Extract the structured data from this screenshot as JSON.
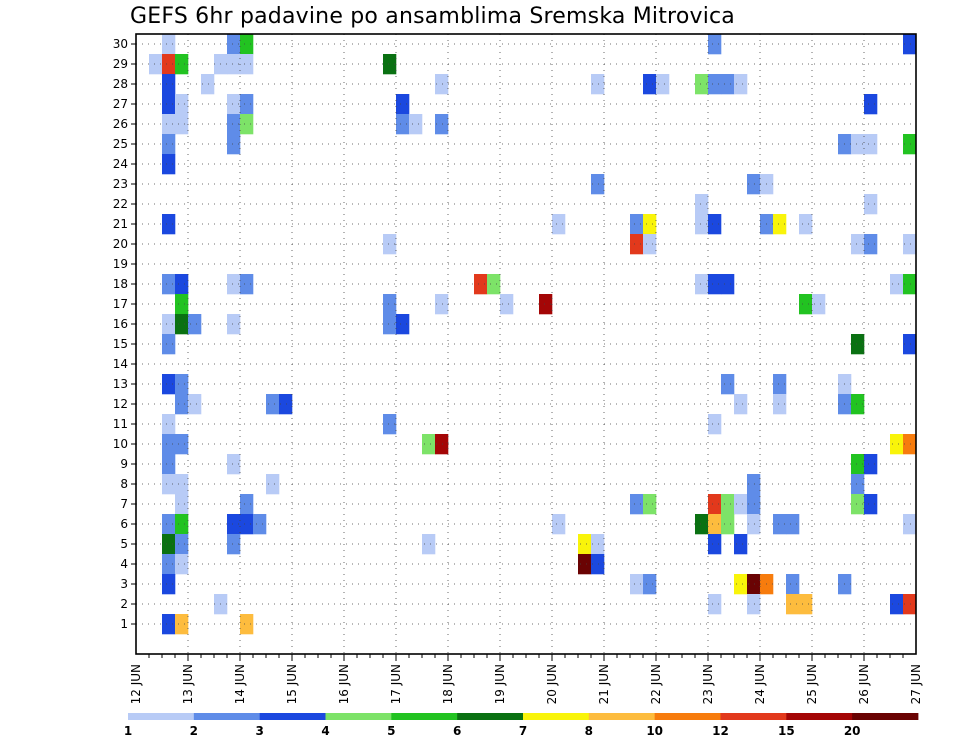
{
  "chart_data": {
    "type": "heatmap",
    "title": "GEFS 6hr padavine po ansamblima Sremska Mitrovica",
    "y_ticks": [
      "1",
      "2",
      "3",
      "4",
      "5",
      "6",
      "7",
      "8",
      "9",
      "10",
      "11",
      "12",
      "13",
      "14",
      "15",
      "16",
      "17",
      "18",
      "19",
      "20",
      "21",
      "22",
      "23",
      "24",
      "25",
      "26",
      "27",
      "28",
      "29",
      "30"
    ],
    "x_ticks": [
      "12 JUN",
      "13 JUN",
      "14 JUN",
      "15 JUN",
      "16 JUN",
      "17 JUN",
      "18 JUN",
      "19 JUN",
      "20 JUN",
      "21 JUN",
      "22 JUN",
      "23 JUN",
      "24 JUN",
      "25 JUN",
      "26 JUN",
      "27 JUN"
    ],
    "x_range": [
      "12 JUN 00Z",
      "27 JUN 00Z"
    ],
    "y_range": [
      0,
      30
    ],
    "grid": "dotted",
    "colorbar": {
      "labels": [
        "1",
        "2",
        "3",
        "4",
        "5",
        "6",
        "7",
        "8",
        "10",
        "12",
        "15",
        "20"
      ],
      "colors": [
        "#b8cbf6",
        "#5f8ce8",
        "#1b48df",
        "#7de368",
        "#22c321",
        "#0a7112",
        "#f9f40a",
        "#fdbc3e",
        "#f77c0d",
        "#e2391c",
        "#a40606",
        "#6a0303"
      ]
    },
    "cell_value_legend": "level index 1-12 = color bin of colorbar (1 = 1-2 mm ... 12 = >=20 mm)",
    "cells": [
      {
        "m": 30,
        "t": "12 JUN 12Z",
        "v": 1
      },
      {
        "m": 30,
        "t": "13 JUN 18Z",
        "v": 2
      },
      {
        "m": 30,
        "t": "14 JUN 00Z",
        "v": 5
      },
      {
        "m": 30,
        "t": "23 JUN 00Z",
        "v": 2
      },
      {
        "m": 30,
        "t": "26 JUN 18Z",
        "v": 3
      },
      {
        "m": 29,
        "t": "12 JUN 06Z",
        "v": 1
      },
      {
        "m": 29,
        "t": "12 JUN 12Z",
        "v": 10
      },
      {
        "m": 29,
        "t": "12 JUN 18Z",
        "v": 5
      },
      {
        "m": 29,
        "t": "13 JUN 12Z",
        "v": 1
      },
      {
        "m": 29,
        "t": "13 JUN 18Z",
        "v": 1
      },
      {
        "m": 29,
        "t": "14 JUN 00Z",
        "v": 1
      },
      {
        "m": 29,
        "t": "16 JUN 18Z",
        "v": 6
      },
      {
        "m": 28,
        "t": "12 JUN 12Z",
        "v": 3
      },
      {
        "m": 28,
        "t": "13 JUN 06Z",
        "v": 1
      },
      {
        "m": 28,
        "t": "17 JUN 18Z",
        "v": 1
      },
      {
        "m": 28,
        "t": "20 JUN 18Z",
        "v": 1
      },
      {
        "m": 28,
        "t": "21 JUN 18Z",
        "v": 3
      },
      {
        "m": 28,
        "t": "22 JUN 00Z",
        "v": 1
      },
      {
        "m": 28,
        "t": "22 JUN 18Z",
        "v": 4
      },
      {
        "m": 28,
        "t": "23 JUN 00Z",
        "v": 2
      },
      {
        "m": 28,
        "t": "23 JUN 06Z",
        "v": 2
      },
      {
        "m": 28,
        "t": "23 JUN 12Z",
        "v": 1
      },
      {
        "m": 27,
        "t": "12 JUN 12Z",
        "v": 3
      },
      {
        "m": 27,
        "t": "12 JUN 18Z",
        "v": 1
      },
      {
        "m": 27,
        "t": "13 JUN 18Z",
        "v": 1
      },
      {
        "m": 27,
        "t": "14 JUN 00Z",
        "v": 2
      },
      {
        "m": 27,
        "t": "17 JUN 00Z",
        "v": 3
      },
      {
        "m": 27,
        "t": "26 JUN 00Z",
        "v": 3
      },
      {
        "m": 26,
        "t": "12 JUN 12Z",
        "v": 1
      },
      {
        "m": 26,
        "t": "12 JUN 18Z",
        "v": 1
      },
      {
        "m": 26,
        "t": "13 JUN 18Z",
        "v": 2
      },
      {
        "m": 26,
        "t": "14 JUN 00Z",
        "v": 4
      },
      {
        "m": 26,
        "t": "17 JUN 00Z",
        "v": 2
      },
      {
        "m": 26,
        "t": "17 JUN 06Z",
        "v": 1
      },
      {
        "m": 26,
        "t": "17 JUN 18Z",
        "v": 2
      },
      {
        "m": 25,
        "t": "12 JUN 12Z",
        "v": 2
      },
      {
        "m": 25,
        "t": "13 JUN 18Z",
        "v": 2
      },
      {
        "m": 25,
        "t": "25 JUN 12Z",
        "v": 2
      },
      {
        "m": 25,
        "t": "25 JUN 18Z",
        "v": 1
      },
      {
        "m": 25,
        "t": "26 JUN 00Z",
        "v": 1
      },
      {
        "m": 25,
        "t": "26 JUN 18Z",
        "v": 5
      },
      {
        "m": 24,
        "t": "12 JUN 12Z",
        "v": 3
      },
      {
        "m": 23,
        "t": "20 JUN 18Z",
        "v": 2
      },
      {
        "m": 23,
        "t": "23 JUN 18Z",
        "v": 2
      },
      {
        "m": 23,
        "t": "24 JUN 00Z",
        "v": 1
      },
      {
        "m": 22,
        "t": "22 JUN 18Z",
        "v": 1
      },
      {
        "m": 22,
        "t": "26 JUN 00Z",
        "v": 1
      },
      {
        "m": 21,
        "t": "12 JUN 12Z",
        "v": 3
      },
      {
        "m": 21,
        "t": "20 JUN 00Z",
        "v": 1
      },
      {
        "m": 21,
        "t": "21 JUN 12Z",
        "v": 2
      },
      {
        "m": 21,
        "t": "21 JUN 18Z",
        "v": 7
      },
      {
        "m": 21,
        "t": "22 JUN 18Z",
        "v": 1
      },
      {
        "m": 21,
        "t": "23 JUN 00Z",
        "v": 3
      },
      {
        "m": 21,
        "t": "24 JUN 00Z",
        "v": 2
      },
      {
        "m": 21,
        "t": "24 JUN 06Z",
        "v": 7
      },
      {
        "m": 21,
        "t": "24 JUN 18Z",
        "v": 1
      },
      {
        "m": 20,
        "t": "16 JUN 18Z",
        "v": 1
      },
      {
        "m": 20,
        "t": "21 JUN 12Z",
        "v": 10
      },
      {
        "m": 20,
        "t": "21 JUN 18Z",
        "v": 1
      },
      {
        "m": 20,
        "t": "25 JUN 18Z",
        "v": 1
      },
      {
        "m": 20,
        "t": "26 JUN 00Z",
        "v": 2
      },
      {
        "m": 20,
        "t": "26 JUN 18Z",
        "v": 1
      },
      {
        "m": 18,
        "t": "12 JUN 12Z",
        "v": 2
      },
      {
        "m": 18,
        "t": "12 JUN 18Z",
        "v": 3
      },
      {
        "m": 18,
        "t": "13 JUN 18Z",
        "v": 1
      },
      {
        "m": 18,
        "t": "14 JUN 00Z",
        "v": 2
      },
      {
        "m": 18,
        "t": "18 JUN 12Z",
        "v": 10
      },
      {
        "m": 18,
        "t": "18 JUN 18Z",
        "v": 4
      },
      {
        "m": 18,
        "t": "22 JUN 18Z",
        "v": 1
      },
      {
        "m": 18,
        "t": "23 JUN 00Z",
        "v": 3
      },
      {
        "m": 18,
        "t": "23 JUN 06Z",
        "v": 3
      },
      {
        "m": 18,
        "t": "26 JUN 12Z",
        "v": 1
      },
      {
        "m": 18,
        "t": "26 JUN 18Z",
        "v": 5
      },
      {
        "m": 17,
        "t": "12 JUN 18Z",
        "v": 5
      },
      {
        "m": 17,
        "t": "16 JUN 18Z",
        "v": 2
      },
      {
        "m": 17,
        "t": "17 JUN 18Z",
        "v": 1
      },
      {
        "m": 17,
        "t": "19 JUN 00Z",
        "v": 1
      },
      {
        "m": 17,
        "t": "19 JUN 18Z",
        "v": 11
      },
      {
        "m": 17,
        "t": "24 JUN 18Z",
        "v": 5
      },
      {
        "m": 17,
        "t": "25 JUN 00Z",
        "v": 1
      },
      {
        "m": 16,
        "t": "12 JUN 12Z",
        "v": 1
      },
      {
        "m": 16,
        "t": "12 JUN 18Z",
        "v": 6
      },
      {
        "m": 16,
        "t": "13 JUN 00Z",
        "v": 2
      },
      {
        "m": 16,
        "t": "13 JUN 18Z",
        "v": 1
      },
      {
        "m": 16,
        "t": "16 JUN 18Z",
        "v": 2
      },
      {
        "m": 16,
        "t": "17 JUN 00Z",
        "v": 3
      },
      {
        "m": 15,
        "t": "12 JUN 12Z",
        "v": 2
      },
      {
        "m": 15,
        "t": "25 JUN 18Z",
        "v": 6
      },
      {
        "m": 15,
        "t": "26 JUN 18Z",
        "v": 3
      },
      {
        "m": 13,
        "t": "12 JUN 12Z",
        "v": 3
      },
      {
        "m": 13,
        "t": "12 JUN 18Z",
        "v": 2
      },
      {
        "m": 13,
        "t": "23 JUN 06Z",
        "v": 2
      },
      {
        "m": 13,
        "t": "24 JUN 06Z",
        "v": 2
      },
      {
        "m": 13,
        "t": "25 JUN 12Z",
        "v": 1
      },
      {
        "m": 12,
        "t": "12 JUN 18Z",
        "v": 2
      },
      {
        "m": 12,
        "t": "13 JUN 00Z",
        "v": 1
      },
      {
        "m": 12,
        "t": "14 JUN 12Z",
        "v": 2
      },
      {
        "m": 12,
        "t": "14 JUN 18Z",
        "v": 3
      },
      {
        "m": 12,
        "t": "23 JUN 12Z",
        "v": 1
      },
      {
        "m": 12,
        "t": "24 JUN 06Z",
        "v": 1
      },
      {
        "m": 12,
        "t": "25 JUN 12Z",
        "v": 2
      },
      {
        "m": 12,
        "t": "25 JUN 18Z",
        "v": 5
      },
      {
        "m": 11,
        "t": "12 JUN 12Z",
        "v": 1
      },
      {
        "m": 11,
        "t": "16 JUN 18Z",
        "v": 2
      },
      {
        "m": 11,
        "t": "23 JUN 00Z",
        "v": 1
      },
      {
        "m": 10,
        "t": "12 JUN 12Z",
        "v": 2
      },
      {
        "m": 10,
        "t": "12 JUN 18Z",
        "v": 2
      },
      {
        "m": 10,
        "t": "17 JUN 12Z",
        "v": 4
      },
      {
        "m": 10,
        "t": "17 JUN 18Z",
        "v": 11
      },
      {
        "m": 10,
        "t": "26 JUN 12Z",
        "v": 7
      },
      {
        "m": 10,
        "t": "26 JUN 18Z",
        "v": 9
      },
      {
        "m": 9,
        "t": "12 JUN 12Z",
        "v": 2
      },
      {
        "m": 9,
        "t": "13 JUN 18Z",
        "v": 1
      },
      {
        "m": 9,
        "t": "25 JUN 18Z",
        "v": 5
      },
      {
        "m": 9,
        "t": "26 JUN 00Z",
        "v": 3
      },
      {
        "m": 8,
        "t": "12 JUN 12Z",
        "v": 1
      },
      {
        "m": 8,
        "t": "12 JUN 18Z",
        "v": 1
      },
      {
        "m": 8,
        "t": "14 JUN 12Z",
        "v": 1
      },
      {
        "m": 8,
        "t": "23 JUN 18Z",
        "v": 2
      },
      {
        "m": 8,
        "t": "25 JUN 18Z",
        "v": 2
      },
      {
        "m": 7,
        "t": "12 JUN 18Z",
        "v": 1
      },
      {
        "m": 7,
        "t": "14 JUN 00Z",
        "v": 2
      },
      {
        "m": 7,
        "t": "21 JUN 12Z",
        "v": 2
      },
      {
        "m": 7,
        "t": "21 JUN 18Z",
        "v": 4
      },
      {
        "m": 7,
        "t": "23 JUN 00Z",
        "v": 10
      },
      {
        "m": 7,
        "t": "23 JUN 06Z",
        "v": 4
      },
      {
        "m": 7,
        "t": "23 JUN 12Z",
        "v": 1
      },
      {
        "m": 7,
        "t": "23 JUN 18Z",
        "v": 2
      },
      {
        "m": 7,
        "t": "25 JUN 18Z",
        "v": 4
      },
      {
        "m": 7,
        "t": "26 JUN 00Z",
        "v": 3
      },
      {
        "m": 6,
        "t": "12 JUN 12Z",
        "v": 2
      },
      {
        "m": 6,
        "t": "12 JUN 18Z",
        "v": 5
      },
      {
        "m": 6,
        "t": "13 JUN 18Z",
        "v": 3
      },
      {
        "m": 6,
        "t": "14 JUN 00Z",
        "v": 3
      },
      {
        "m": 6,
        "t": "14 JUN 06Z",
        "v": 2
      },
      {
        "m": 6,
        "t": "20 JUN 00Z",
        "v": 1
      },
      {
        "m": 6,
        "t": "22 JUN 18Z",
        "v": 6
      },
      {
        "m": 6,
        "t": "23 JUN 00Z",
        "v": 8
      },
      {
        "m": 6,
        "t": "23 JUN 06Z",
        "v": 4
      },
      {
        "m": 6,
        "t": "23 JUN 18Z",
        "v": 1
      },
      {
        "m": 6,
        "t": "24 JUN 06Z",
        "v": 2
      },
      {
        "m": 6,
        "t": "24 JUN 12Z",
        "v": 2
      },
      {
        "m": 6,
        "t": "26 JUN 18Z",
        "v": 1
      },
      {
        "m": 5,
        "t": "12 JUN 12Z",
        "v": 6
      },
      {
        "m": 5,
        "t": "12 JUN 18Z",
        "v": 2
      },
      {
        "m": 5,
        "t": "13 JUN 18Z",
        "v": 2
      },
      {
        "m": 5,
        "t": "17 JUN 12Z",
        "v": 1
      },
      {
        "m": 5,
        "t": "20 JUN 12Z",
        "v": 7
      },
      {
        "m": 5,
        "t": "20 JUN 18Z",
        "v": 1
      },
      {
        "m": 5,
        "t": "23 JUN 00Z",
        "v": 3
      },
      {
        "m": 5,
        "t": "23 JUN 12Z",
        "v": 3
      },
      {
        "m": 4,
        "t": "12 JUN 12Z",
        "v": 2
      },
      {
        "m": 4,
        "t": "12 JUN 18Z",
        "v": 1
      },
      {
        "m": 4,
        "t": "20 JUN 12Z",
        "v": 12
      },
      {
        "m": 4,
        "t": "20 JUN 18Z",
        "v": 3
      },
      {
        "m": 3,
        "t": "12 JUN 12Z",
        "v": 3
      },
      {
        "m": 3,
        "t": "21 JUN 12Z",
        "v": 1
      },
      {
        "m": 3,
        "t": "21 JUN 18Z",
        "v": 2
      },
      {
        "m": 3,
        "t": "23 JUN 12Z",
        "v": 7
      },
      {
        "m": 3,
        "t": "23 JUN 18Z",
        "v": 12
      },
      {
        "m": 3,
        "t": "24 JUN 00Z",
        "v": 9
      },
      {
        "m": 3,
        "t": "24 JUN 12Z",
        "v": 2
      },
      {
        "m": 3,
        "t": "25 JUN 12Z",
        "v": 2
      },
      {
        "m": 2,
        "t": "13 JUN 12Z",
        "v": 1
      },
      {
        "m": 2,
        "t": "23 JUN 00Z",
        "v": 1
      },
      {
        "m": 2,
        "t": "23 JUN 18Z",
        "v": 1
      },
      {
        "m": 2,
        "t": "24 JUN 12Z",
        "v": 8
      },
      {
        "m": 2,
        "t": "24 JUN 18Z",
        "v": 8
      },
      {
        "m": 2,
        "t": "26 JUN 12Z",
        "v": 3
      },
      {
        "m": 2,
        "t": "26 JUN 18Z",
        "v": 10
      },
      {
        "m": 1,
        "t": "12 JUN 12Z",
        "v": 3
      },
      {
        "m": 1,
        "t": "12 JUN 18Z",
        "v": 8
      },
      {
        "m": 1,
        "t": "14 JUN 00Z",
        "v": 8
      }
    ]
  }
}
